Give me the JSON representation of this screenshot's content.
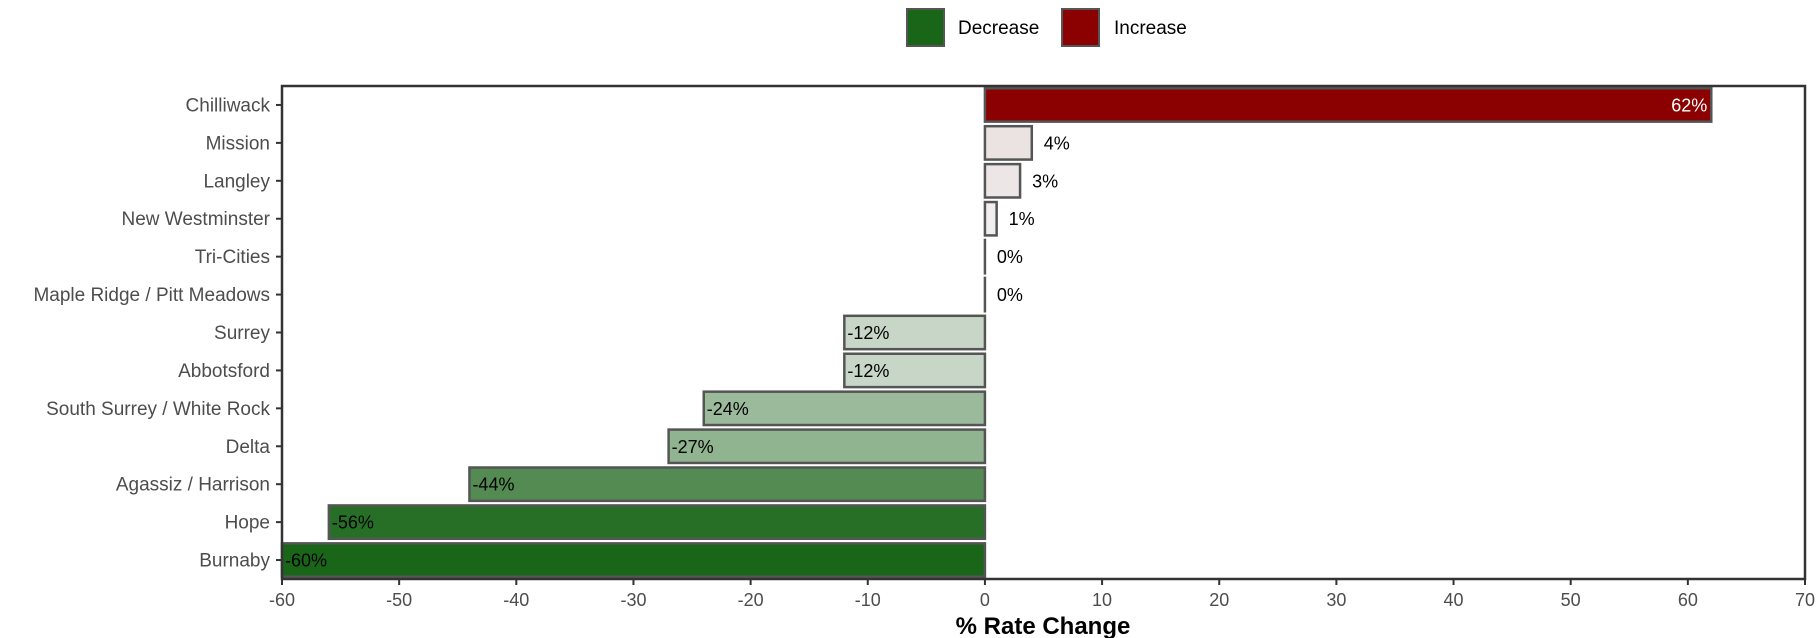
{
  "legend": {
    "decrease_label": "Decrease",
    "increase_label": "Increase",
    "decrease_color": "#196619",
    "increase_color": "#8b0000",
    "placement": "top-center"
  },
  "chart_data": {
    "type": "bar",
    "orientation": "horizontal",
    "categories": [
      "Chilliwack",
      "Mission",
      "Langley",
      "New Westminster",
      "Tri-Cities",
      "Maple Ridge / Pitt Meadows",
      "Surrey",
      "Abbotsford",
      "South Surrey / White Rock",
      "Delta",
      "Agassiz / Harrison",
      "Hope",
      "Burnaby"
    ],
    "values": [
      62,
      4,
      3,
      1,
      0,
      0,
      -12,
      -12,
      -24,
      -27,
      -44,
      -56,
      -60
    ],
    "data_labels": [
      "62%",
      "4%",
      "3%",
      "1%",
      "0%",
      "0%",
      "-12%",
      "-12%",
      "-24%",
      "-27%",
      "-44%",
      "-56%",
      "-60%"
    ],
    "xlabel": "% Rate Change",
    "ylabel": "",
    "xlim": [
      -60,
      70
    ],
    "x_ticks": [
      "-60",
      "-50",
      "-40",
      "-30",
      "-20",
      "-10",
      "0",
      "10",
      "20",
      "30",
      "40",
      "50",
      "60",
      "70"
    ],
    "grid": false,
    "colors": {
      "decrease_max": "#196619",
      "increase_max": "#8b0000",
      "neutral": "#f2f2f2",
      "bar_border": "#555555"
    }
  }
}
